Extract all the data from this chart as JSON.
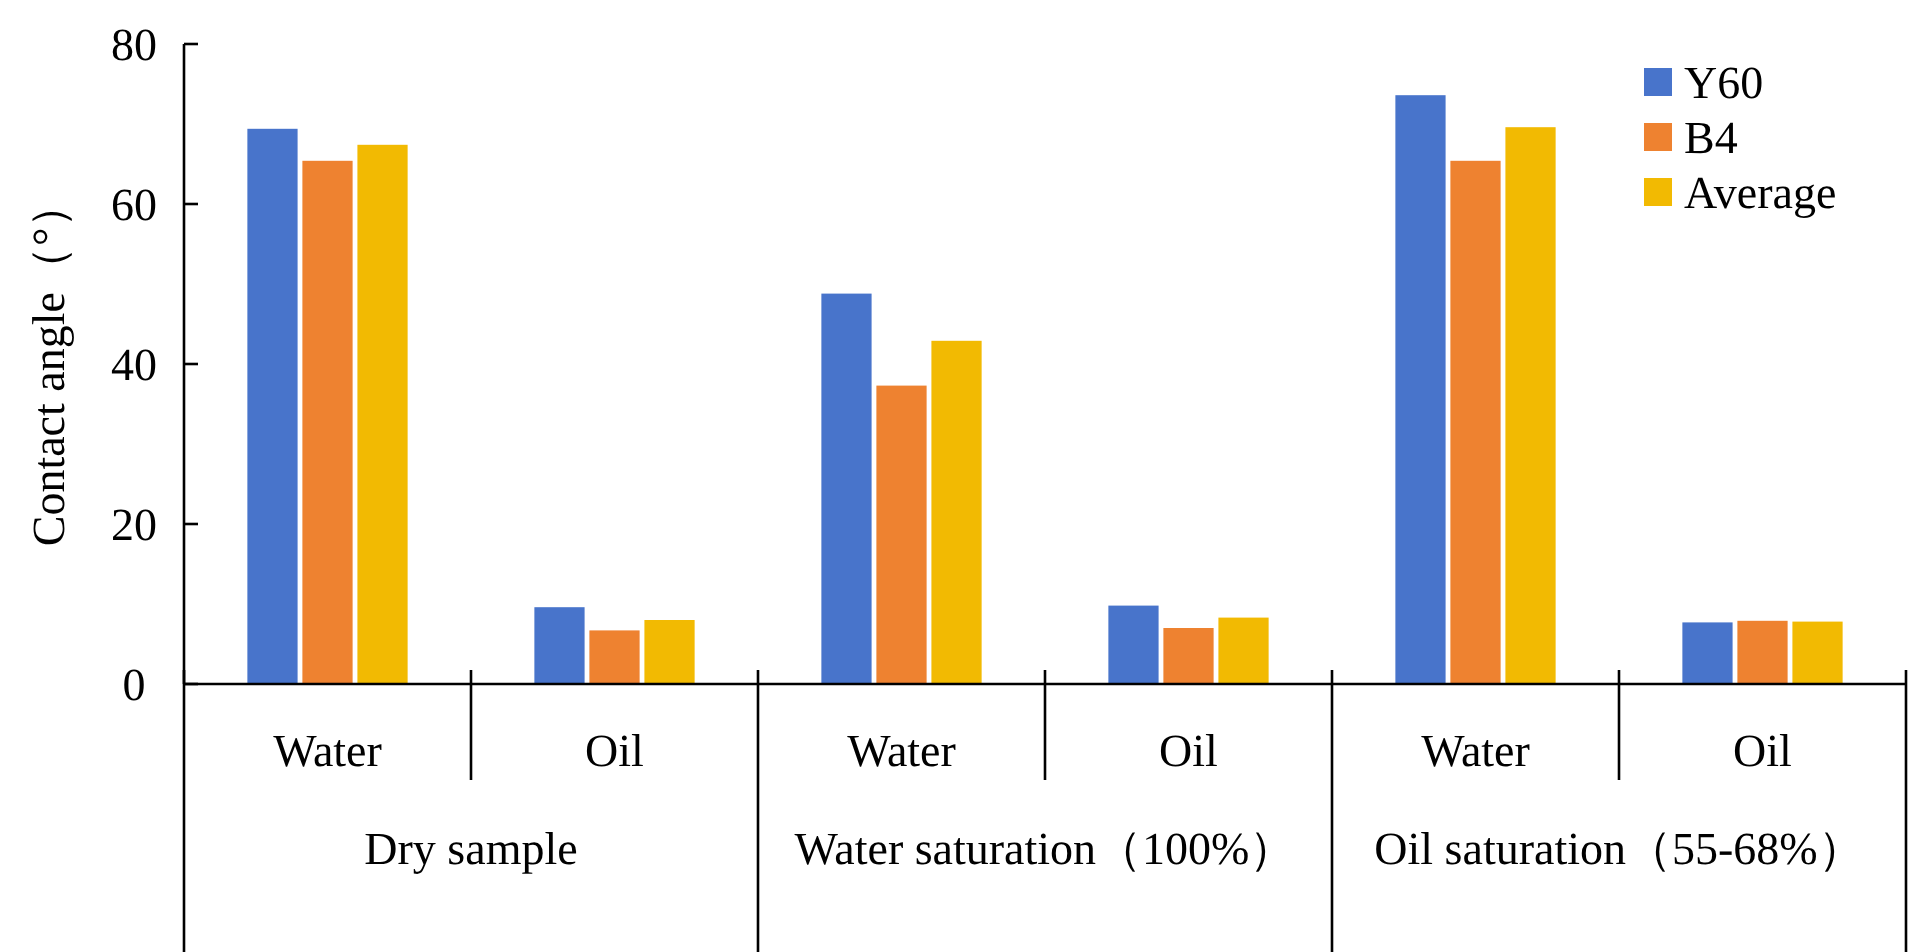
{
  "chart_data": {
    "type": "bar",
    "ylabel": "Contact angle（°）",
    "categories": [
      "Water",
      "Oil",
      "Water",
      "Oil",
      "Water",
      "Oil"
    ],
    "annotations": [
      "Dry sample",
      "Water saturation（100%）",
      "Oil saturation（55-68%）"
    ],
    "series": [
      {
        "name": "Y60",
        "color": "#4874cb",
        "values": [
          69.4,
          9.6,
          48.8,
          9.8,
          73.6,
          7.7
        ]
      },
      {
        "name": "B4",
        "color": "#ee8230",
        "values": [
          65.4,
          6.7,
          37.3,
          7.0,
          65.4,
          7.9
        ]
      },
      {
        "name": "Average",
        "color": "#f2ba02",
        "values": [
          67.4,
          8.0,
          42.9,
          8.3,
          69.6,
          7.8
        ]
      }
    ],
    "ylim": [
      0,
      80
    ],
    "yticks": [
      0,
      20,
      40,
      60,
      80
    ],
    "legend": "top right",
    "grid": false
  }
}
